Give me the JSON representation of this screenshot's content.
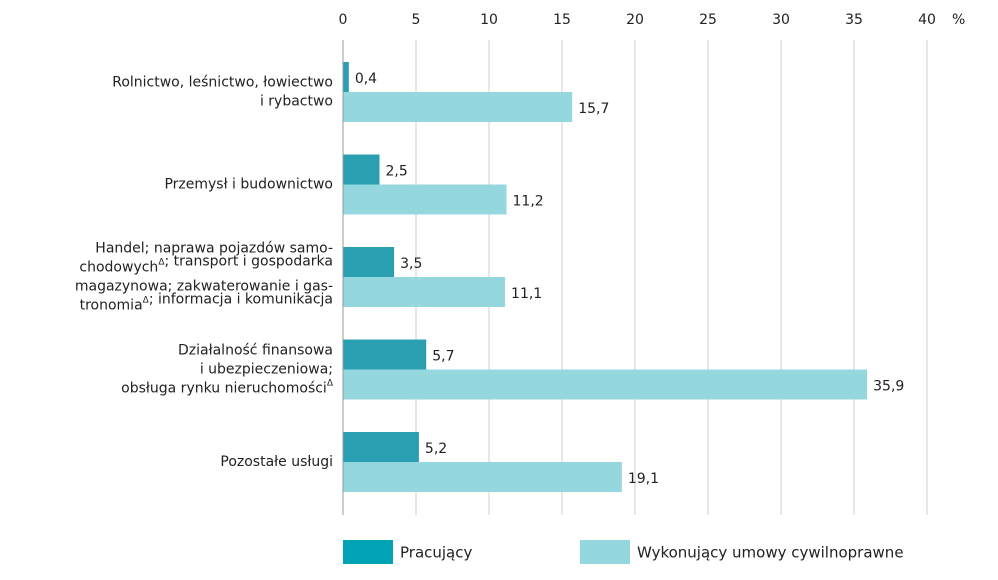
{
  "chart_data": {
    "type": "bar",
    "orientation": "horizontal",
    "categories": [
      "Rolnictwo, leśnictwo, łowiectwo\ni rybactwo",
      "Przemysł i budownictwo",
      "Handel; naprawa pojazdów samo-\nchodowychΔ; transport i gospodarka\nmagazynowa; zakwaterowanie i gas-\ntronomiaΔ; informacja i komunikacja",
      "Działalność finansowa\ni ubezpieczeniowa;\nobsługa rynku nieruchomościΔ",
      "Pozostałe usługi"
    ],
    "series": [
      {
        "name": "Pracujący",
        "color": "#2a9fb2",
        "values": [
          0.4,
          2.5,
          3.5,
          5.7,
          5.2
        ],
        "value_labels": [
          "0,4",
          "2,5",
          "3,5",
          "5,7",
          "5,2"
        ]
      },
      {
        "name": "Wykonujący umowy cywilnoprawne",
        "color": "#94d7df",
        "values": [
          15.7,
          11.2,
          11.1,
          35.9,
          19.1
        ],
        "value_labels": [
          "15,7",
          "11,2",
          "11,1",
          "35,9",
          "19,1"
        ]
      }
    ],
    "xlabel": "%",
    "xlim": [
      0,
      40
    ],
    "xticks": [
      0,
      5,
      10,
      15,
      20,
      25,
      30,
      35,
      40
    ],
    "grid": true
  }
}
